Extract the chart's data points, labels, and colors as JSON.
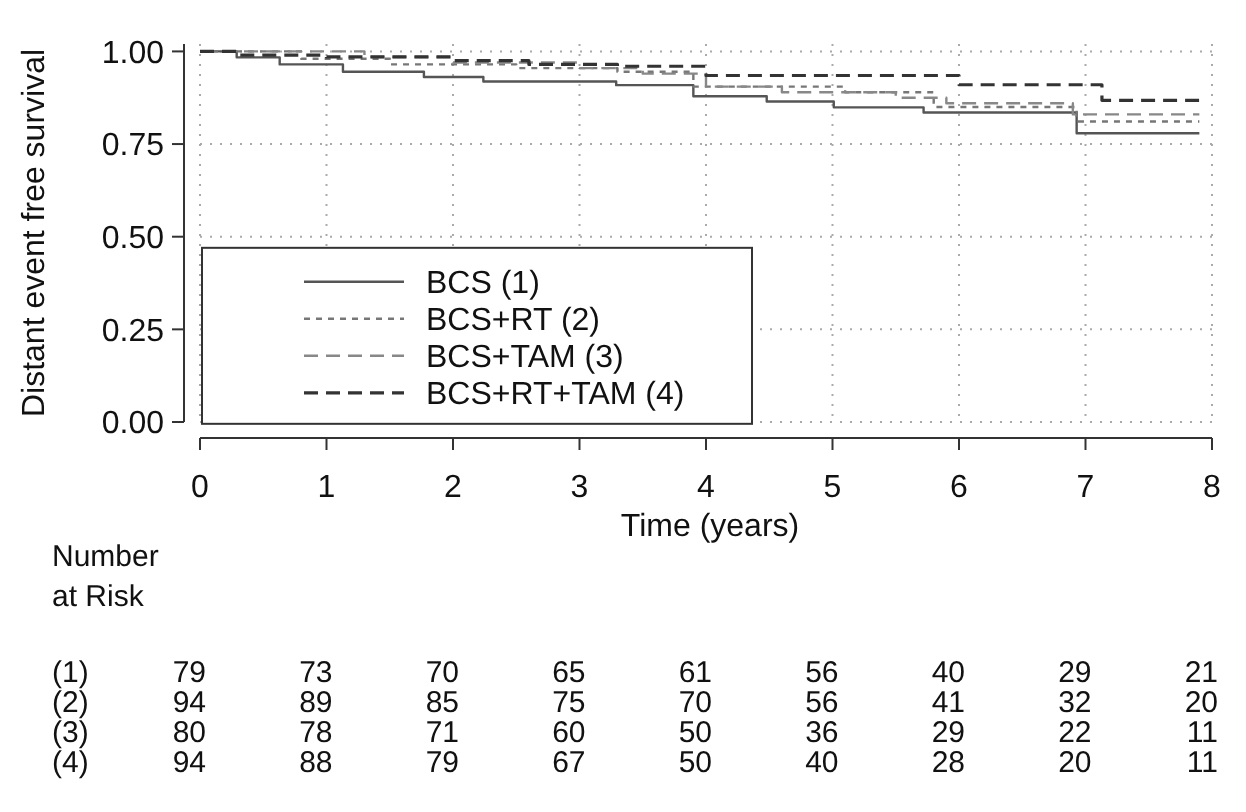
{
  "chart_data": {
    "type": "step",
    "xlabel": "Time (years)",
    "ylabel": "Distant event free survival",
    "xlim": [
      0,
      8
    ],
    "ylim": [
      0,
      1.02
    ],
    "xticks": [
      0,
      1,
      2,
      3,
      4,
      5,
      6,
      7,
      8
    ],
    "yticks": [
      {
        "value": 0,
        "label": "0.00"
      },
      {
        "value": 0.25,
        "label": "0.25"
      },
      {
        "value": 0.5,
        "label": "0.50"
      },
      {
        "value": 0.75,
        "label": "0.75"
      },
      {
        "value": 1,
        "label": "1.00"
      }
    ],
    "grid": true,
    "legend": "bottom left",
    "marker": "none",
    "series": [
      {
        "name": "BCS (1)",
        "color": "#555555",
        "line_style": "solid",
        "x": [
          0,
          0.29,
          0.63,
          1.13,
          1.77,
          2.24,
          3.29,
          3.9,
          4.48,
          5.01,
          5.72,
          6.93,
          7.9
        ],
        "values": [
          1,
          0.984,
          0.965,
          0.945,
          0.931,
          0.919,
          0.909,
          0.879,
          0.865,
          0.849,
          0.835,
          0.779,
          0.779
        ]
      },
      {
        "name": "BCS+RT (2)",
        "color": "#777777",
        "line_style": "dotted",
        "x": [
          0,
          0.8,
          1.5,
          2.5,
          3.3,
          3.9,
          5.1,
          5.8,
          6.93,
          7.9
        ],
        "values": [
          1,
          0.98,
          0.965,
          0.955,
          0.945,
          0.905,
          0.89,
          0.85,
          0.811,
          0.811
        ]
      },
      {
        "name": "BCS+TAM (3)",
        "color": "#888888",
        "line_style": "dashed",
        "x": [
          0,
          1.3,
          2,
          3,
          3.5,
          4,
          4.6,
          5.5,
          5.9,
          6.9,
          7.9
        ],
        "values": [
          1,
          0.985,
          0.97,
          0.955,
          0.94,
          0.905,
          0.89,
          0.875,
          0.86,
          0.83,
          0.83
        ]
      },
      {
        "name": "BCS+RT+TAM (4)",
        "color": "#333333",
        "line_style": "dashed",
        "x": [
          0,
          0.3,
          1,
          2,
          2.6,
          3.3,
          4,
          6,
          7.13,
          7.9
        ],
        "values": [
          1,
          0.99,
          0.985,
          0.975,
          0.965,
          0.96,
          0.935,
          0.91,
          0.868,
          0.868
        ]
      }
    ],
    "annotations": [
      "Number at Risk",
      "(1) 79 73 70 65 61 56 40 29 21",
      "(2) 94 89 85 75 70 56 41 32 20",
      "(3) 80 78 71 60 50 36 29 22 11",
      "(4) 94 88 79 67 50 40 28 20 11"
    ]
  }
}
